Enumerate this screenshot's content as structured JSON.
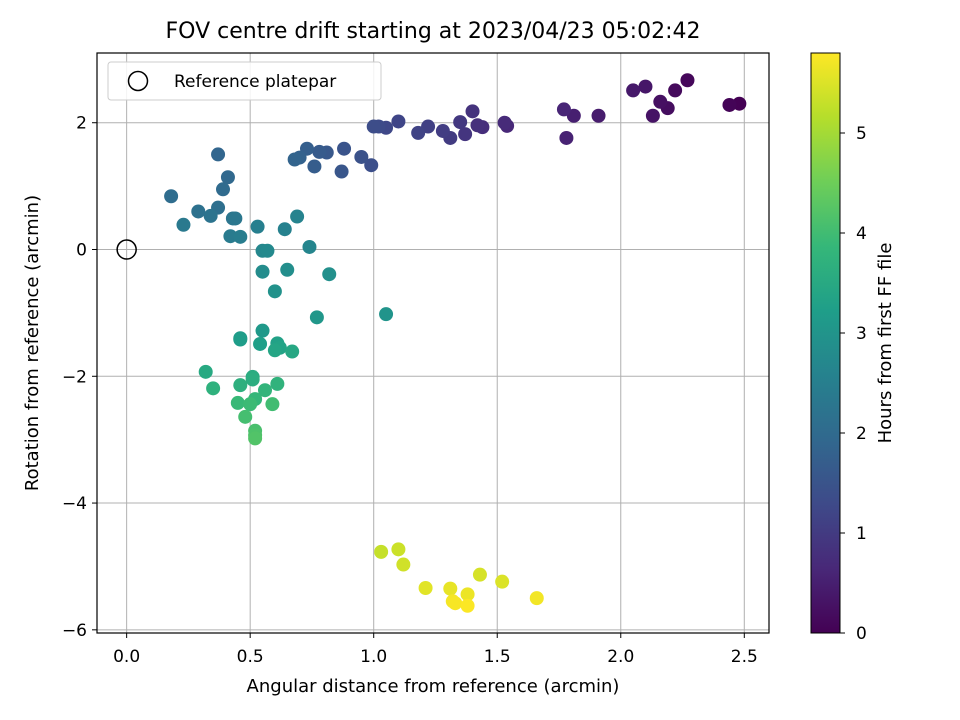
{
  "chart_data": {
    "type": "scatter",
    "title": "FOV centre drift starting at 2023/04/23 05:02:42",
    "xlabel": "Angular distance from reference (arcmin)",
    "ylabel": "Rotation from reference (arcmin)",
    "xlim": [
      -0.12,
      2.6
    ],
    "ylim": [
      -6.05,
      3.1
    ],
    "xticks": [
      0.0,
      0.5,
      1.0,
      1.5,
      2.0,
      2.5
    ],
    "xtick_labels": [
      "0.0",
      "0.5",
      "1.0",
      "1.5",
      "2.0",
      "2.5"
    ],
    "yticks": [
      -6,
      -4,
      -2,
      0,
      2
    ],
    "ytick_labels": [
      "−6",
      "−4",
      "−2",
      "0",
      "2"
    ],
    "grid": true,
    "legend": {
      "placement": "upper-left",
      "entries": [
        "Reference platepar"
      ]
    },
    "reference_point": {
      "x": 0.0,
      "y": 0.0,
      "label": "Reference platepar",
      "marker": "open-circle"
    },
    "colorbar": {
      "label": "Hours from first FF file",
      "colormap": "viridis",
      "range": [
        0,
        5.8
      ],
      "ticks": [
        0,
        1,
        2,
        3,
        4,
        5
      ],
      "tick_labels": [
        "0",
        "1",
        "2",
        "3",
        "4",
        "5"
      ]
    },
    "points": [
      {
        "x": 2.48,
        "y": 2.3,
        "c": 0.0
      },
      {
        "x": 2.44,
        "y": 2.28,
        "c": 0.05
      },
      {
        "x": 2.27,
        "y": 2.67,
        "c": 0.1
      },
      {
        "x": 2.22,
        "y": 2.51,
        "c": 0.15
      },
      {
        "x": 2.19,
        "y": 2.23,
        "c": 0.2
      },
      {
        "x": 2.16,
        "y": 2.33,
        "c": 0.25
      },
      {
        "x": 2.13,
        "y": 2.11,
        "c": 0.3
      },
      {
        "x": 2.1,
        "y": 2.57,
        "c": 0.35
      },
      {
        "x": 2.05,
        "y": 2.51,
        "c": 0.4
      },
      {
        "x": 1.91,
        "y": 2.11,
        "c": 0.45
      },
      {
        "x": 1.81,
        "y": 2.11,
        "c": 0.5
      },
      {
        "x": 1.78,
        "y": 1.76,
        "c": 0.55
      },
      {
        "x": 1.77,
        "y": 2.21,
        "c": 0.6
      },
      {
        "x": 1.54,
        "y": 1.95,
        "c": 0.65
      },
      {
        "x": 1.53,
        "y": 2.0,
        "c": 0.7
      },
      {
        "x": 1.44,
        "y": 1.93,
        "c": 0.75
      },
      {
        "x": 1.42,
        "y": 1.96,
        "c": 0.8
      },
      {
        "x": 1.4,
        "y": 2.18,
        "c": 0.85
      },
      {
        "x": 1.37,
        "y": 1.82,
        "c": 0.9
      },
      {
        "x": 1.35,
        "y": 2.01,
        "c": 0.95
      },
      {
        "x": 1.31,
        "y": 1.76,
        "c": 1.0
      },
      {
        "x": 1.28,
        "y": 1.87,
        "c": 1.05
      },
      {
        "x": 1.22,
        "y": 1.94,
        "c": 1.1
      },
      {
        "x": 1.18,
        "y": 1.84,
        "c": 1.15
      },
      {
        "x": 1.1,
        "y": 2.02,
        "c": 1.2
      },
      {
        "x": 1.05,
        "y": 1.92,
        "c": 1.25
      },
      {
        "x": 1.02,
        "y": 1.94,
        "c": 1.3
      },
      {
        "x": 1.0,
        "y": 1.94,
        "c": 1.35
      },
      {
        "x": 0.99,
        "y": 1.33,
        "c": 1.4
      },
      {
        "x": 0.95,
        "y": 1.46,
        "c": 1.45
      },
      {
        "x": 0.88,
        "y": 1.59,
        "c": 1.5
      },
      {
        "x": 0.87,
        "y": 1.23,
        "c": 1.55
      },
      {
        "x": 0.81,
        "y": 1.53,
        "c": 1.6
      },
      {
        "x": 0.78,
        "y": 1.54,
        "c": 1.65
      },
      {
        "x": 0.76,
        "y": 1.31,
        "c": 1.7
      },
      {
        "x": 0.73,
        "y": 1.59,
        "c": 1.75
      },
      {
        "x": 0.7,
        "y": 1.45,
        "c": 1.8
      },
      {
        "x": 0.68,
        "y": 1.42,
        "c": 1.85
      },
      {
        "x": 0.37,
        "y": 1.5,
        "c": 1.9
      },
      {
        "x": 0.41,
        "y": 1.14,
        "c": 1.95
      },
      {
        "x": 0.39,
        "y": 0.95,
        "c": 2.0
      },
      {
        "x": 0.18,
        "y": 0.84,
        "c": 2.05
      },
      {
        "x": 0.37,
        "y": 0.66,
        "c": 2.1
      },
      {
        "x": 0.29,
        "y": 0.6,
        "c": 2.15
      },
      {
        "x": 0.34,
        "y": 0.53,
        "c": 2.2
      },
      {
        "x": 0.43,
        "y": 0.49,
        "c": 2.25
      },
      {
        "x": 0.44,
        "y": 0.49,
        "c": 2.3
      },
      {
        "x": 0.23,
        "y": 0.39,
        "c": 2.35
      },
      {
        "x": 0.42,
        "y": 0.21,
        "c": 2.4
      },
      {
        "x": 0.46,
        "y": 0.2,
        "c": 2.45
      },
      {
        "x": 0.53,
        "y": 0.36,
        "c": 2.5
      },
      {
        "x": 0.64,
        "y": 0.32,
        "c": 2.55
      },
      {
        "x": 0.69,
        "y": 0.52,
        "c": 2.6
      },
      {
        "x": 0.74,
        "y": 0.04,
        "c": 2.65
      },
      {
        "x": 0.55,
        "y": -0.02,
        "c": 2.7
      },
      {
        "x": 0.57,
        "y": -0.02,
        "c": 2.75
      },
      {
        "x": 0.55,
        "y": -0.35,
        "c": 2.8
      },
      {
        "x": 0.65,
        "y": -0.32,
        "c": 2.85
      },
      {
        "x": 0.82,
        "y": -0.39,
        "c": 2.9
      },
      {
        "x": 0.6,
        "y": -0.66,
        "c": 2.95
      },
      {
        "x": 1.05,
        "y": -1.02,
        "c": 3.0
      },
      {
        "x": 0.77,
        "y": -1.07,
        "c": 3.05
      },
      {
        "x": 0.55,
        "y": -1.28,
        "c": 3.1
      },
      {
        "x": 0.46,
        "y": -1.4,
        "c": 3.15
      },
      {
        "x": 0.46,
        "y": -1.42,
        "c": 3.2
      },
      {
        "x": 0.54,
        "y": -1.49,
        "c": 3.25
      },
      {
        "x": 0.61,
        "y": -1.48,
        "c": 3.3
      },
      {
        "x": 0.62,
        "y": -1.55,
        "c": 3.35
      },
      {
        "x": 0.6,
        "y": -1.59,
        "c": 3.4
      },
      {
        "x": 0.67,
        "y": -1.61,
        "c": 3.45
      },
      {
        "x": 0.32,
        "y": -1.93,
        "c": 3.5
      },
      {
        "x": 0.51,
        "y": -2.01,
        "c": 3.55
      },
      {
        "x": 0.51,
        "y": -2.05,
        "c": 3.6
      },
      {
        "x": 0.46,
        "y": -2.14,
        "c": 3.65
      },
      {
        "x": 0.35,
        "y": -2.19,
        "c": 3.7
      },
      {
        "x": 0.61,
        "y": -2.12,
        "c": 3.75
      },
      {
        "x": 0.56,
        "y": -2.22,
        "c": 3.8
      },
      {
        "x": 0.52,
        "y": -2.36,
        "c": 3.85
      },
      {
        "x": 0.45,
        "y": -2.42,
        "c": 3.9
      },
      {
        "x": 0.5,
        "y": -2.44,
        "c": 3.95
      },
      {
        "x": 0.59,
        "y": -2.44,
        "c": 4.0
      },
      {
        "x": 0.48,
        "y": -2.64,
        "c": 4.05
      },
      {
        "x": 0.52,
        "y": -2.86,
        "c": 4.1
      },
      {
        "x": 0.52,
        "y": -2.93,
        "c": 4.15
      },
      {
        "x": 0.52,
        "y": -2.98,
        "c": 4.2
      },
      {
        "x": 1.03,
        "y": -4.77,
        "c": 5.3
      },
      {
        "x": 1.1,
        "y": -4.73,
        "c": 5.35
      },
      {
        "x": 1.12,
        "y": -4.97,
        "c": 5.4
      },
      {
        "x": 1.43,
        "y": -5.13,
        "c": 5.45
      },
      {
        "x": 1.52,
        "y": -5.24,
        "c": 5.5
      },
      {
        "x": 1.21,
        "y": -5.34,
        "c": 5.55
      },
      {
        "x": 1.31,
        "y": -5.35,
        "c": 5.6
      },
      {
        "x": 1.38,
        "y": -5.44,
        "c": 5.65
      },
      {
        "x": 1.66,
        "y": -5.5,
        "c": 5.7
      },
      {
        "x": 1.32,
        "y": -5.55,
        "c": 5.72
      },
      {
        "x": 1.33,
        "y": -5.58,
        "c": 5.75
      },
      {
        "x": 1.38,
        "y": -5.62,
        "c": 5.78
      }
    ]
  }
}
